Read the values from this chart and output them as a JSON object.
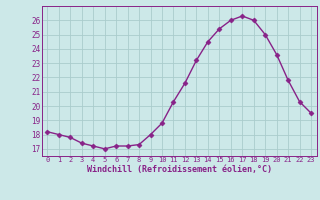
{
  "x": [
    0,
    1,
    2,
    3,
    4,
    5,
    6,
    7,
    8,
    9,
    10,
    11,
    12,
    13,
    14,
    15,
    16,
    17,
    18,
    19,
    20,
    21,
    22,
    23
  ],
  "y": [
    18.2,
    18.0,
    17.8,
    17.4,
    17.2,
    17.0,
    17.2,
    17.2,
    17.3,
    18.0,
    18.8,
    20.3,
    21.6,
    23.2,
    24.5,
    25.4,
    26.0,
    26.3,
    26.0,
    25.0,
    23.6,
    21.8,
    20.3,
    19.5
  ],
  "line_color": "#882288",
  "marker": "D",
  "marker_size": 2.5,
  "line_width": 1.0,
  "bg_color": "#cce8e8",
  "grid_color": "#aacccc",
  "xlabel": "Windchill (Refroidissement éolien,°C)",
  "xlim": [
    -0.5,
    23.5
  ],
  "ylim": [
    16.5,
    27.0
  ],
  "yticks": [
    17,
    18,
    19,
    20,
    21,
    22,
    23,
    24,
    25,
    26
  ],
  "xticks": [
    0,
    1,
    2,
    3,
    4,
    5,
    6,
    7,
    8,
    9,
    10,
    11,
    12,
    13,
    14,
    15,
    16,
    17,
    18,
    19,
    20,
    21,
    22,
    23
  ],
  "tick_color": "#882288",
  "label_color": "#882288"
}
